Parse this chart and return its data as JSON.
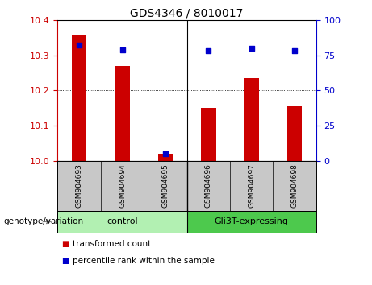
{
  "title": "GDS4346 / 8010017",
  "samples": [
    "GSM904693",
    "GSM904694",
    "GSM904695",
    "GSM904696",
    "GSM904697",
    "GSM904698"
  ],
  "red_values": [
    10.355,
    10.27,
    10.02,
    10.15,
    10.235,
    10.155
  ],
  "blue_values": [
    82,
    79,
    5,
    78,
    80,
    78
  ],
  "ylim_left": [
    10.0,
    10.4
  ],
  "ylim_right": [
    0,
    100
  ],
  "yticks_left": [
    10.0,
    10.1,
    10.2,
    10.3,
    10.4
  ],
  "yticks_right": [
    0,
    25,
    50,
    75,
    100
  ],
  "red_color": "#cc0000",
  "blue_color": "#0000cc",
  "bar_width": 0.35,
  "background_label": "#c8c8c8",
  "group_colors": [
    "#b2f0b2",
    "#4dc94d"
  ],
  "group_labels": [
    "control",
    "Gli3T-expressing"
  ],
  "genotype_label": "genotype/variation",
  "legend_red": "transformed count",
  "legend_blue": "percentile rank within the sample"
}
